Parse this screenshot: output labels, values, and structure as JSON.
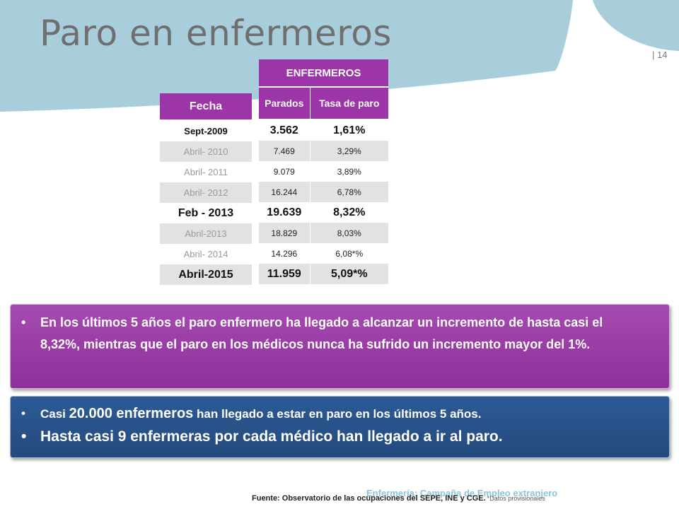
{
  "slide": {
    "title": "Paro en enfermeros",
    "page_number": "| 14",
    "colors": {
      "header_band": "#a9cedb",
      "table_header": "#9c35a7",
      "purple_box": "#9a3da6",
      "blue_box": "#2a5389"
    }
  },
  "fecha_table": {
    "header": "Fecha",
    "rows": [
      "Sept-2009",
      "Abril- 2010",
      "Abril- 2011",
      "Abril- 2012",
      "Feb - 2013",
      "Abril-2013",
      "Abril- 2014",
      "Abril-2015"
    ]
  },
  "enfermeros_table": {
    "header": "ENFERMEROS",
    "columns": [
      "Parados",
      "Tasa de paro"
    ],
    "rows": [
      [
        "3.562",
        "1,61%"
      ],
      [
        "7.469",
        "3,29%"
      ],
      [
        "9.079",
        "3,89%"
      ],
      [
        "16.244",
        "6,78%"
      ],
      [
        "19.639",
        "8,32%"
      ],
      [
        "18.829",
        "8,03%"
      ],
      [
        "14.296",
        "6,08*%"
      ],
      [
        "11.959",
        "5,09*%"
      ]
    ]
  },
  "purple_box": {
    "bullet": "En los últimos 5 años el paro enfermero ha llegado a alcanzar un incremento de hasta casi el 8,32%, mientras que el paro en los médicos nunca ha sufrido un incremento mayor del 1%."
  },
  "blue_box": {
    "bullet1_prefix": "Casi ",
    "bullet1_emph": "20.000 enfermeros",
    "bullet1_suffix": " han llegado a estar en paro en los últimos 5 años.",
    "bullet2": "Hasta casi 9 enfermeras por cada médico han llegado a ir al paro."
  },
  "footer": {
    "watermark": "Enfermería: Campaña de Empleo extranjero",
    "source": "Fuente: Observatorio de las ocupaciones del SEPE, INE y CGE.",
    "note": "*Datos provisionales"
  }
}
